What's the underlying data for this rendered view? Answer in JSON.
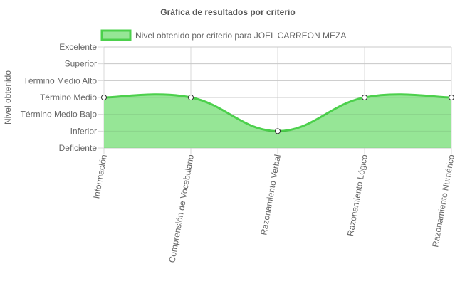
{
  "colors": {
    "line": "#4cd04c",
    "fill": "#96e696",
    "legend_box": "#96e696",
    "legend_border": "#4cd04c",
    "grid": "#d9d9d9",
    "text": "#666666",
    "title": "#555555",
    "point_fill": "#ffffff",
    "point_stroke": "#333333"
  },
  "chart_data": {
    "type": "area",
    "title": "Gráfica de resultados por criterio",
    "ylabel": "Nivel obtenido",
    "xlabel": "",
    "categories": [
      "Información",
      "Comprensión de Vocabulario",
      "Razonamiento Verbal",
      "Razonamiento Lógico",
      "Razonamiento Numérico"
    ],
    "y_levels": [
      "Deficiente",
      "Inferior",
      "Término Medio Bajo",
      "Término Medio",
      "Término Medio Alto",
      "Superior",
      "Excelente"
    ],
    "ylim": [
      0,
      6
    ],
    "series": [
      {
        "name": "Nivel obtenido por criterio para JOEL CARREON MEZA",
        "values": [
          3,
          3,
          1,
          3,
          3
        ]
      }
    ],
    "grid": true,
    "legend_position": "top"
  }
}
